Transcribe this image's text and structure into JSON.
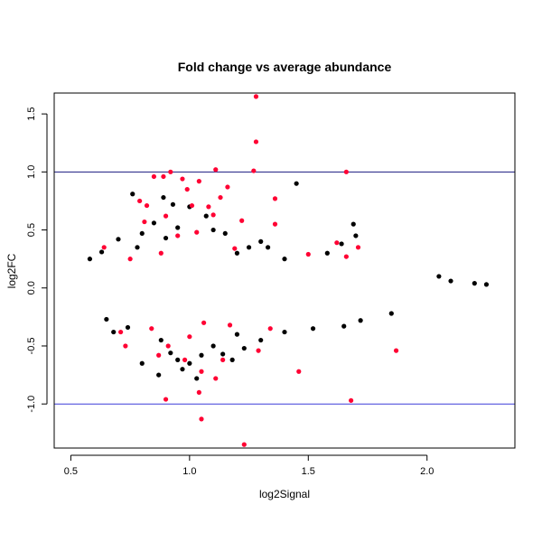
{
  "chart_data": {
    "type": "scatter",
    "title": "Fold change vs average abundance",
    "xlabel": "log2Signal",
    "ylabel": "log2FC",
    "xlim": [
      0.43,
      2.37
    ],
    "ylim": [
      -1.38,
      1.68
    ],
    "x_ticks": [
      0.5,
      1.0,
      1.5,
      2.0
    ],
    "x_tick_labels": [
      "0.5",
      "1.0",
      "1.5",
      "2.0"
    ],
    "y_ticks": [
      -1.0,
      -0.5,
      0.0,
      0.5,
      1.0,
      1.5
    ],
    "y_tick_labels": [
      "-1.0",
      "-0.5",
      "0.0",
      "0.5",
      "1.0",
      "1.5"
    ],
    "hlines": [
      {
        "y": 1.0,
        "color": "#1a1a80"
      },
      {
        "y": -1.0,
        "color": "#3b3bd9"
      }
    ],
    "grid": false,
    "colors": {
      "black": "#000000",
      "blue": "#0000ff",
      "red": "#ff0033"
    },
    "series": [
      {
        "color_key": "black",
        "points": [
          [
            0.76,
            0.81
          ],
          [
            0.89,
            0.78
          ],
          [
            0.93,
            0.72
          ],
          [
            1.0,
            0.7
          ],
          [
            0.85,
            0.56
          ],
          [
            0.95,
            0.52
          ],
          [
            0.8,
            0.47
          ],
          [
            0.7,
            0.42
          ],
          [
            0.9,
            0.43
          ],
          [
            1.1,
            0.5
          ],
          [
            1.15,
            0.47
          ],
          [
            1.25,
            0.35
          ],
          [
            1.3,
            0.4
          ],
          [
            1.45,
            0.9
          ],
          [
            1.64,
            0.38
          ],
          [
            1.69,
            0.55
          ],
          [
            1.7,
            0.45
          ],
          [
            1.58,
            0.3
          ],
          [
            1.4,
            0.25
          ],
          [
            1.2,
            0.3
          ],
          [
            0.63,
            0.31
          ],
          [
            0.74,
            -0.34
          ],
          [
            0.88,
            -0.45
          ],
          [
            0.92,
            -0.56
          ],
          [
            0.95,
            -0.62
          ],
          [
            0.97,
            -0.7
          ],
          [
            1.0,
            -0.65
          ],
          [
            1.03,
            -0.78
          ],
          [
            1.05,
            -0.58
          ],
          [
            1.1,
            -0.5
          ],
          [
            1.14,
            -0.57
          ],
          [
            1.2,
            -0.4
          ],
          [
            1.23,
            -0.52
          ],
          [
            1.3,
            -0.45
          ],
          [
            1.4,
            -0.38
          ],
          [
            1.52,
            -0.35
          ],
          [
            1.65,
            -0.33
          ],
          [
            1.72,
            -0.28
          ],
          [
            1.85,
            -0.22
          ],
          [
            0.8,
            -0.65
          ],
          [
            0.87,
            -0.75
          ],
          [
            1.18,
            -0.62
          ],
          [
            0.68,
            -0.38
          ],
          [
            0.65,
            -0.27
          ],
          [
            0.58,
            0.25
          ],
          [
            0.78,
            0.35
          ],
          [
            1.07,
            0.62
          ],
          [
            1.33,
            0.35
          ],
          [
            2.05,
            0.1
          ],
          [
            2.1,
            0.06
          ],
          [
            2.2,
            0.04
          ],
          [
            2.25,
            0.03
          ]
        ]
      },
      {
        "color_key": "red",
        "points": [
          [
            1.28,
            1.65
          ],
          [
            1.28,
            1.26
          ],
          [
            1.11,
            1.02
          ],
          [
            1.27,
            1.01
          ],
          [
            1.66,
            1.0
          ],
          [
            0.92,
            1.0
          ],
          [
            0.85,
            0.96
          ],
          [
            0.89,
            0.96
          ],
          [
            0.97,
            0.94
          ],
          [
            1.04,
            0.92
          ],
          [
            1.16,
            0.87
          ],
          [
            0.99,
            0.85
          ],
          [
            1.13,
            0.78
          ],
          [
            1.36,
            0.77
          ],
          [
            0.79,
            0.75
          ],
          [
            0.82,
            0.71
          ],
          [
            1.01,
            0.71
          ],
          [
            1.08,
            0.7
          ],
          [
            1.1,
            0.63
          ],
          [
            0.81,
            0.57
          ],
          [
            0.9,
            0.62
          ],
          [
            1.22,
            0.58
          ],
          [
            1.36,
            0.55
          ],
          [
            1.03,
            0.48
          ],
          [
            0.95,
            0.45
          ],
          [
            1.62,
            0.39
          ],
          [
            1.71,
            0.35
          ],
          [
            1.66,
            0.27
          ],
          [
            1.5,
            0.29
          ],
          [
            0.64,
            0.35
          ],
          [
            0.75,
            0.25
          ],
          [
            0.88,
            0.3
          ],
          [
            1.19,
            0.34
          ],
          [
            1.06,
            -0.3
          ],
          [
            1.0,
            -0.42
          ],
          [
            0.87,
            -0.58
          ],
          [
            0.73,
            -0.5
          ],
          [
            0.91,
            -0.5
          ],
          [
            0.98,
            -0.62
          ],
          [
            1.05,
            -0.72
          ],
          [
            1.11,
            -0.78
          ],
          [
            1.14,
            -0.62
          ],
          [
            1.29,
            -0.54
          ],
          [
            1.46,
            -0.72
          ],
          [
            1.87,
            -0.54
          ],
          [
            1.68,
            -0.97
          ],
          [
            0.9,
            -0.96
          ],
          [
            1.05,
            -1.13
          ],
          [
            1.23,
            -1.35
          ],
          [
            1.04,
            -0.9
          ],
          [
            0.84,
            -0.35
          ],
          [
            1.17,
            -0.32
          ],
          [
            1.34,
            -0.35
          ],
          [
            0.71,
            -0.38
          ]
        ]
      }
    ]
  }
}
